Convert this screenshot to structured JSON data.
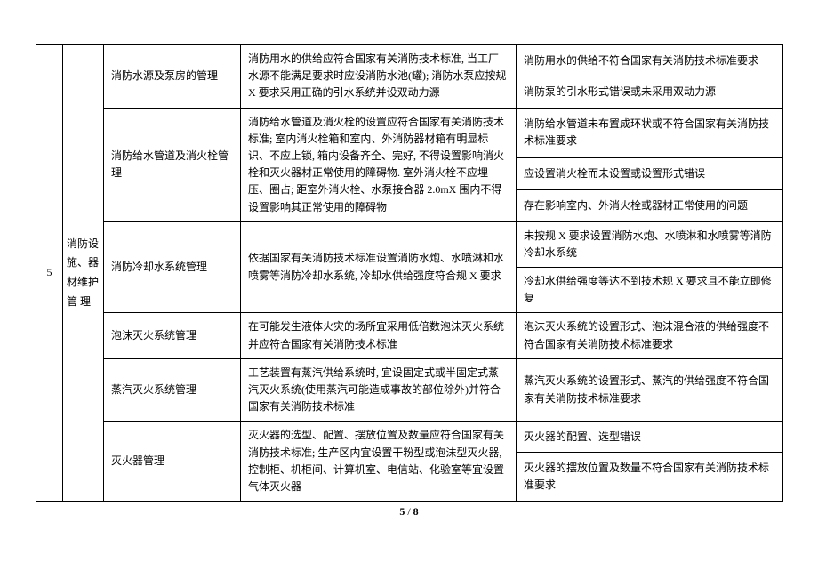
{
  "table": {
    "index": "5",
    "category": "消防设施、器材维护管  理",
    "rows": [
      {
        "sub": "消防水源及泵房的管理",
        "sub_rowspan": 2,
        "desc": "消防用水的供给应符合国家有关消防技术标准, 当工厂水源不能满足要求时应设消防水池(罐); 消防水泵应按规 X 要求采用正确的引水系统并设双动力源",
        "desc_rowspan": 2,
        "issue": "消防用水的供给不符合国家有关消防技术标准要求"
      },
      {
        "issue": "消防泵的引水形式错误或未采用双动力源"
      },
      {
        "sub": "消防给水管道及消火栓管理",
        "sub_rowspan": 3,
        "desc": "消防给水管道及消火栓的设置应符合国家有关消防技术标准; 室内消火栓箱和室内、外消防器材箱有明显标识、不应上锁, 箱内设备齐全、完好, 不得设置影响消火栓和灭火器材正常使用的障碍物. 室外消火栓不应埋压、圈占; 距室外消火栓、水泵接合器 2.0mX 围内不得设置影响其正常使用的障碍物",
        "desc_rowspan": 3,
        "issue": "消防给水管道未布置成环状或不符合国家有关消防技术标准要求"
      },
      {
        "issue": "应设置消火栓而未设置或设置形式错误"
      },
      {
        "issue": "存在影响室内、外消火栓或器材正常使用的问题"
      },
      {
        "sub": "消防冷却水系统管理",
        "sub_rowspan": 2,
        "desc": "依据国家有关消防技术标准设置消防水炮、水喷淋和水喷雾等消防冷却水系统, 冷却水供给强度符合规 X 要求",
        "desc_rowspan": 2,
        "issue": "未按规 X 要求设置消防水炮、水喷淋和水喷雾等消防冷却水系统"
      },
      {
        "issue": "冷却水供给强度等达不到技术规 X 要求且不能立即修复"
      },
      {
        "sub": "泡沫灭火系统管理",
        "sub_rowspan": 1,
        "desc": "在可能发生液体火灾的场所宜采用低倍数泡沫灭火系统并应符合国家有关消防技术标准",
        "desc_rowspan": 1,
        "issue": "泡沫灭火系统的设置形式、泡沫混合液的供给强度不符合国家有关消防技术标准要求"
      },
      {
        "sub": "蒸汽灭火系统管理",
        "sub_rowspan": 1,
        "desc": "工艺装置有蒸汽供给系统时, 宜设固定式或半固定式蒸汽灭火系统(使用蒸汽可能造成事故的部位除外)并符合国家有关消防技术标准",
        "desc_rowspan": 1,
        "issue": "蒸汽灭火系统的设置形式、蒸汽的供给强度不符合国家有关消防技术标准要求"
      },
      {
        "sub": "灭火器管理",
        "sub_rowspan": 2,
        "desc": "灭火器的选型、配置、摆放位置及数量应符合国家有关消防技术标准; 生产区内宜设置干粉型或泡沫型灭火器, 控制柜、机柜间、计算机室、电信站、化验室等宜设置气体灭火器",
        "desc_rowspan": 2,
        "issue": "灭火器的配置、选型错误"
      },
      {
        "issue": "灭火器的摆放位置及数量不符合国家有关消防技术标准要求"
      }
    ]
  },
  "footer": {
    "page_current": "5",
    "page_sep": " / ",
    "page_total": "8"
  }
}
